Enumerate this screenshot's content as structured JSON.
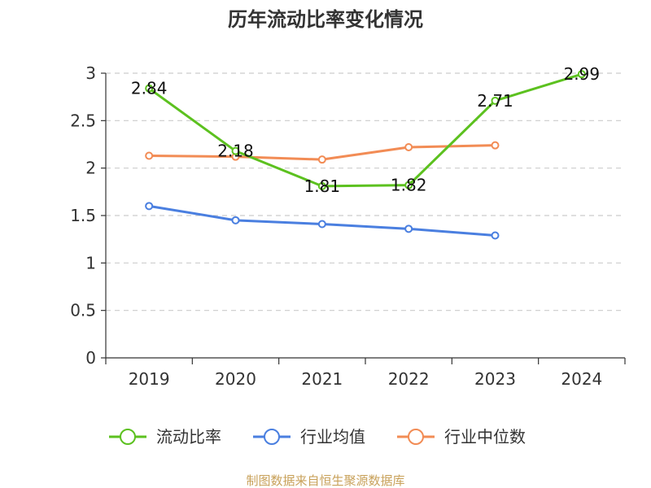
{
  "chart_data": {
    "type": "line",
    "title": "历年流动比率变化情况",
    "categories": [
      "2019",
      "2020",
      "2021",
      "2022",
      "2023",
      "2024"
    ],
    "ylim": [
      0,
      3
    ],
    "yticks": [
      "0",
      "0.5",
      "1",
      "1.5",
      "2",
      "2.5",
      "3"
    ],
    "ytick_values": [
      0,
      0.5,
      1,
      1.5,
      2,
      2.5,
      3
    ],
    "grid": true,
    "legend_position": "bottom",
    "series": [
      {
        "name": "流动比率",
        "color": "#5cc11f",
        "values": [
          2.84,
          2.18,
          1.81,
          1.82,
          2.71,
          2.99
        ],
        "labels": [
          "2.84",
          "2.18",
          "1.81",
          "1.82",
          "2.71",
          "2.99"
        ],
        "show_labels": true
      },
      {
        "name": "行业均值",
        "color": "#4a7fe0",
        "values": [
          1.6,
          1.45,
          1.41,
          1.36,
          1.29,
          null
        ],
        "show_labels": false
      },
      {
        "name": "行业中位数",
        "color": "#f28c55",
        "values": [
          2.13,
          2.12,
          2.09,
          2.22,
          2.24,
          null
        ],
        "show_labels": false
      }
    ],
    "source": "制图数据来自恒生聚源数据库"
  }
}
